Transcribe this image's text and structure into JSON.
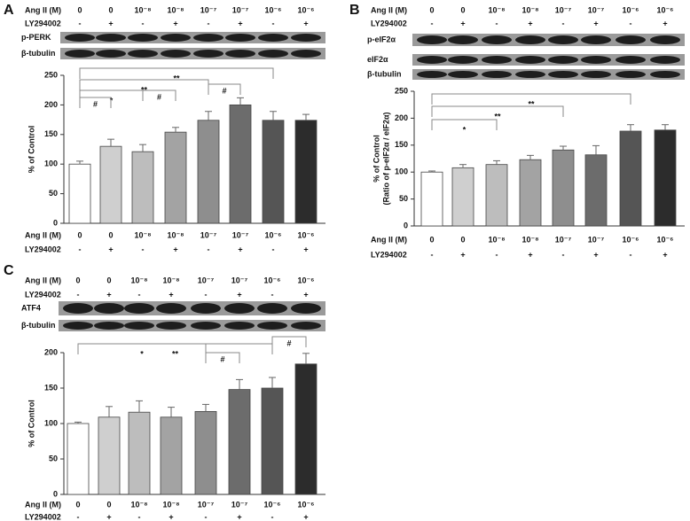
{
  "chart_data": [
    {
      "type": "bar",
      "panel": "A",
      "ang_label": "Ang II (M)",
      "ly_label": "LY294002",
      "categories": [
        "0",
        "0",
        "10⁻⁸",
        "10⁻⁸",
        "10⁻⁷",
        "10⁻⁷",
        "10⁻⁶",
        "10⁻⁶"
      ],
      "ly": [
        "-",
        "+",
        "-",
        "+",
        "-",
        "+",
        "-",
        "+"
      ],
      "blots": [
        "p-PERK",
        "β-tubulin"
      ],
      "ylabel": "% of Control",
      "values": [
        100,
        130,
        121,
        154,
        174,
        200,
        174,
        174
      ],
      "errors": [
        5,
        12,
        12,
        8,
        15,
        12,
        15,
        10
      ],
      "colors": [
        "#ffffff",
        "#cfcfcf",
        "#bdbdbd",
        "#a3a3a3",
        "#8e8e8e",
        "#6c6c6c",
        "#555555",
        "#2c2c2c"
      ],
      "ylim": [
        0,
        250
      ],
      "yticks": [
        0,
        50,
        100,
        150,
        200,
        250
      ],
      "comparisons": [
        {
          "from": 0,
          "to": 6,
          "label": "**"
        },
        {
          "from": 0,
          "to": 4,
          "label": "**"
        },
        {
          "from": 0,
          "to": 2,
          "label": "*"
        },
        {
          "from": 0,
          "to": 1,
          "label": "#"
        },
        {
          "from": 2,
          "to": 3,
          "label": "#"
        },
        {
          "from": 4,
          "to": 5,
          "label": "#"
        }
      ]
    },
    {
      "type": "bar",
      "panel": "B",
      "ang_label": "Ang II (M)",
      "ly_label": "LY294002",
      "categories": [
        "0",
        "0",
        "10⁻⁸",
        "10⁻⁸",
        "10⁻⁷",
        "10⁻⁷",
        "10⁻⁶",
        "10⁻⁶"
      ],
      "ly": [
        "-",
        "+",
        "-",
        "+",
        "-",
        "+",
        "-",
        "+"
      ],
      "blots": [
        "p-eIF2α",
        "eIF2α",
        "β-tubulin"
      ],
      "ylabel": [
        "% of Control",
        "(Ratio of p-eIF2α / eIF2α)"
      ],
      "values": [
        100,
        108,
        114,
        123,
        141,
        132,
        176,
        178
      ],
      "errors": [
        2,
        6,
        7,
        8,
        7,
        17,
        12,
        10
      ],
      "colors": [
        "#ffffff",
        "#cfcfcf",
        "#bdbdbd",
        "#a3a3a3",
        "#8e8e8e",
        "#6c6c6c",
        "#555555",
        "#2c2c2c"
      ],
      "ylim": [
        0,
        250
      ],
      "yticks": [
        0,
        50,
        100,
        150,
        200,
        250
      ],
      "comparisons": [
        {
          "from": 0,
          "to": 6,
          "label": "**"
        },
        {
          "from": 0,
          "to": 4,
          "label": "**"
        },
        {
          "from": 0,
          "to": 2,
          "label": "*"
        }
      ]
    },
    {
      "type": "bar",
      "panel": "C",
      "ang_label": "Ang II (M)",
      "ly_label": "LY294002",
      "categories": [
        "0",
        "0",
        "10⁻⁸",
        "10⁻⁸",
        "10⁻⁷",
        "10⁻⁷",
        "10⁻⁶",
        "10⁻⁶"
      ],
      "ly": [
        "-",
        "+",
        "-",
        "+",
        "-",
        "+",
        "-",
        "+"
      ],
      "blots": [
        "ATF4",
        "β-tubulin"
      ],
      "ylabel": "% of Control",
      "values": [
        100,
        109,
        116,
        109,
        117,
        148,
        150,
        184
      ],
      "errors": [
        2,
        15,
        16,
        14,
        10,
        14,
        15,
        15
      ],
      "colors": [
        "#ffffff",
        "#cfcfcf",
        "#bdbdbd",
        "#a3a3a3",
        "#8e8e8e",
        "#6c6c6c",
        "#555555",
        "#2c2c2c"
      ],
      "ylim": [
        0,
        200
      ],
      "yticks": [
        0,
        50,
        100,
        150,
        200
      ],
      "comparisons": [
        {
          "from": 0,
          "to": 4,
          "label": "*"
        },
        {
          "from": 4,
          "to": 5,
          "label": "#"
        },
        {
          "from": 0,
          "to": 6,
          "label": "**"
        },
        {
          "from": 6,
          "to": 7,
          "label": "#"
        }
      ]
    }
  ]
}
